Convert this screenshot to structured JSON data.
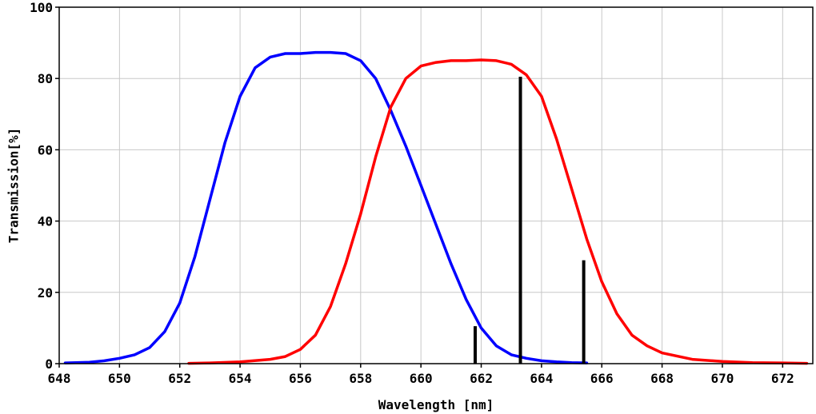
{
  "chart_data": {
    "type": "line",
    "title": "",
    "xlabel": "Wavelength [nm]",
    "ylabel": "Transmission[%]",
    "xlim": [
      648,
      673
    ],
    "ylim": [
      0,
      100
    ],
    "x_ticks": [
      648,
      650,
      652,
      654,
      656,
      658,
      660,
      662,
      664,
      666,
      668,
      670,
      672
    ],
    "y_ticks": [
      0,
      20,
      40,
      60,
      80,
      100
    ],
    "grid": true,
    "legend": "none",
    "series": [
      {
        "color": "#0000ff",
        "x": [
          648.2,
          649,
          649.5,
          650,
          650.5,
          651,
          651.5,
          652,
          652.5,
          653,
          653.5,
          654,
          654.5,
          655,
          655.5,
          656,
          656.5,
          657,
          657.5,
          658,
          658.5,
          659,
          659.5,
          660,
          660.5,
          661,
          661.5,
          662,
          662.5,
          663,
          663.5,
          664,
          664.5,
          665,
          665.5
        ],
        "y": [
          0.2,
          0.4,
          0.8,
          1.5,
          2.5,
          4.5,
          9,
          17,
          30,
          46,
          62,
          75,
          83,
          86,
          87,
          87,
          87.3,
          87.3,
          87,
          85,
          80,
          71,
          61,
          50,
          39,
          28,
          18,
          10,
          5,
          2.5,
          1.5,
          0.8,
          0.5,
          0.3,
          0.2
        ]
      },
      {
        "color": "#ff0000",
        "x": [
          652.3,
          653,
          654,
          655,
          655.5,
          656,
          656.5,
          657,
          657.5,
          658,
          658.5,
          659,
          659.5,
          660,
          660.5,
          661,
          661.5,
          662,
          662.5,
          663,
          663.5,
          664,
          664.5,
          665,
          665.5,
          666,
          666.5,
          667,
          667.5,
          668,
          669,
          670,
          671,
          672,
          672.8
        ],
        "y": [
          0.1,
          0.2,
          0.5,
          1.2,
          2,
          4,
          8,
          16,
          28,
          42,
          58,
          72,
          80,
          83.5,
          84.5,
          85,
          85,
          85.2,
          85,
          84,
          81,
          75,
          63,
          49,
          35,
          23,
          14,
          8,
          5,
          3,
          1.2,
          0.6,
          0.3,
          0.2,
          0.1
        ]
      },
      {
        "type": "bar",
        "color": "#000000",
        "x": [
          661.8,
          663.3,
          665.4
        ],
        "y": [
          10.5,
          80.5,
          29
        ]
      }
    ]
  }
}
